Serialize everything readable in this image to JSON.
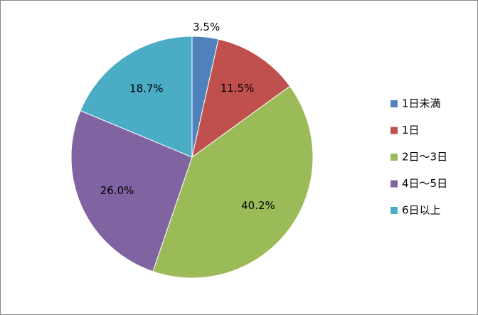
{
  "chart_data": {
    "type": "pie",
    "categories": [
      "1日未満",
      "1日",
      "2日〜3日",
      "4日〜5日",
      "6日以上"
    ],
    "values": [
      3.5,
      11.5,
      40.2,
      26.0,
      18.7
    ],
    "value_labels": [
      "3.5%",
      "11.5%",
      "40.2%",
      "26.0%",
      "18.7%"
    ],
    "colors": [
      "#4f81bd",
      "#c0504d",
      "#9bbb59",
      "#8064a2",
      "#4bacc6"
    ],
    "legend": "right"
  }
}
